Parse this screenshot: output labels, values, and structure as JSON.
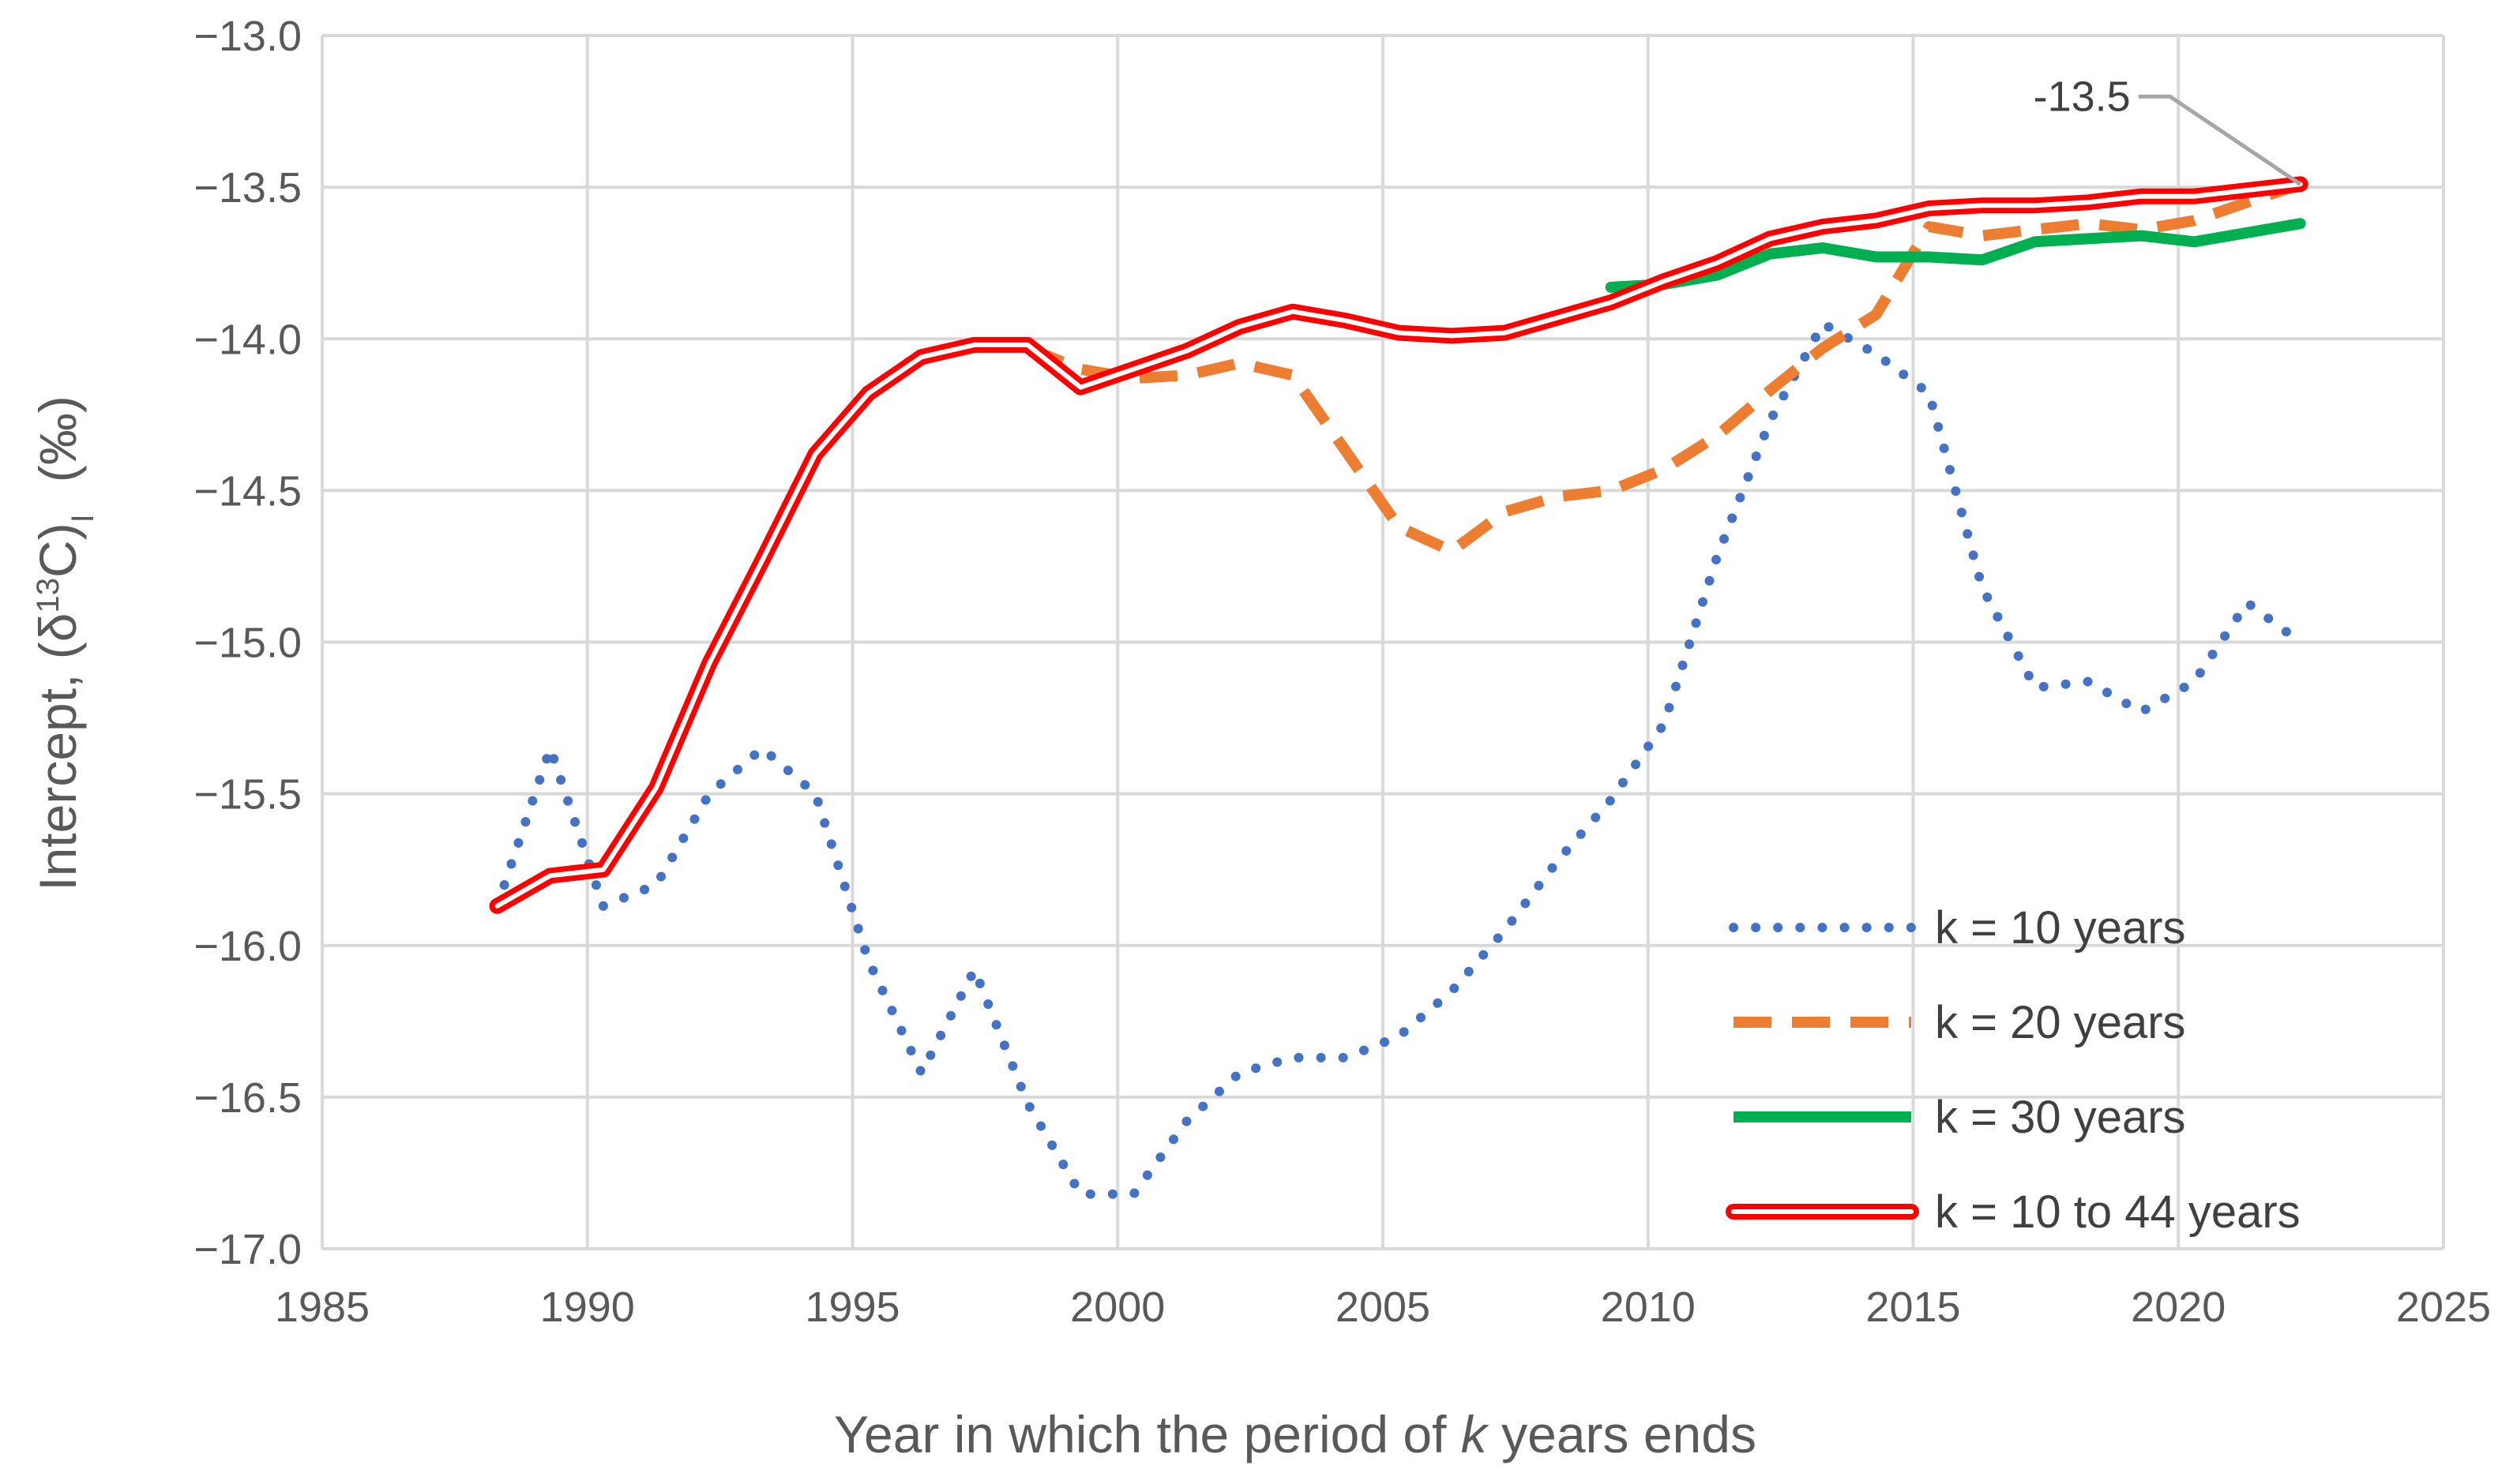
{
  "chart_data": {
    "type": "line",
    "title": "",
    "xlabel_prefix": "Year in which the period of ",
    "xlabel_italic": "k",
    "xlabel_suffix": " years ends",
    "ylabel_main": "Intercept, (δ",
    "ylabel_sup": "13",
    "ylabel_mid": "C)",
    "ylabel_sub": "I",
    "ylabel_unit": "(‰)",
    "xlim": [
      1985,
      2025
    ],
    "ylim": [
      -17.0,
      -13.0
    ],
    "x_ticks": [
      1985,
      1990,
      1995,
      2000,
      2005,
      2010,
      2015,
      2020,
      2025
    ],
    "x_tick_labels": [
      "1985",
      "1990",
      "1995",
      "2000",
      "2005",
      "2010",
      "2015",
      "2020",
      "2025"
    ],
    "y_ticks": [
      -13.0,
      -13.5,
      -14.0,
      -14.5,
      -15.0,
      -15.5,
      -16.0,
      -16.5,
      -17.0
    ],
    "y_tick_labels": [
      "−13.0",
      "−13.5",
      "−14.0",
      "−14.5",
      "−15.0",
      "−15.5",
      "−16.0",
      "−16.5",
      "−17.0"
    ],
    "grid": true,
    "legend_position": "bottom-right",
    "annotation": {
      "text": "-13.5",
      "x": 2022.3,
      "y": -13.49
    },
    "series": [
      {
        "name": "k = 10 years",
        "style": "dotted",
        "color": "#4472C4",
        "x": [
          1988.3,
          1989.3,
          1990.3,
          1991.3,
          1992.3,
          1993.3,
          1994.3,
          1995.3,
          1996.3,
          1997.3,
          1998.3,
          1999.3,
          2000.3,
          2001.3,
          2002.3,
          2003.3,
          2004.3,
          2005.3,
          2006.3,
          2007.3,
          2008.3,
          2009.3,
          2010.3,
          2011.3,
          2012.3,
          2013.3,
          2014.3,
          2015.3,
          2016.3,
          2017.3,
          2018.3,
          2019.3,
          2020.3,
          2021.3,
          2022.3
        ],
        "y": [
          -15.87,
          -15.35,
          -15.87,
          -15.8,
          -15.5,
          -15.35,
          -15.5,
          -16.05,
          -16.42,
          -16.08,
          -16.52,
          -16.82,
          -16.82,
          -16.58,
          -16.42,
          -16.37,
          -16.37,
          -16.3,
          -16.15,
          -15.95,
          -15.72,
          -15.52,
          -15.27,
          -14.72,
          -14.27,
          -13.95,
          -14.05,
          -14.18,
          -14.82,
          -15.15,
          -15.13,
          -15.23,
          -15.13,
          -14.87,
          -15.0
        ]
      },
      {
        "name": "k = 20 years",
        "style": "dashed",
        "color": "#ED7D31",
        "x": [
          1998.3,
          1999.3,
          2000.3,
          2001.3,
          2002.3,
          2003.3,
          2004.3,
          2005.3,
          2006.3,
          2007.3,
          2008.3,
          2009.3,
          2010.3,
          2011.3,
          2012.3,
          2013.3,
          2014.3,
          2015.3,
          2016.3,
          2017.3,
          2018.3,
          2019.3,
          2020.3,
          2021.3,
          2022.3
        ],
        "y": [
          -14.03,
          -14.1,
          -14.13,
          -14.12,
          -14.08,
          -14.12,
          -14.37,
          -14.62,
          -14.7,
          -14.57,
          -14.52,
          -14.5,
          -14.43,
          -14.32,
          -14.17,
          -14.03,
          -13.92,
          -13.63,
          -13.66,
          -13.64,
          -13.62,
          -13.64,
          -13.61,
          -13.55,
          -13.49
        ]
      },
      {
        "name": "k = 30 years",
        "style": "solid",
        "color": "#00B050",
        "x": [
          2009.3,
          2010.3,
          2011.3,
          2012.3,
          2013.3,
          2014.3,
          2015.3,
          2016.3,
          2017.3,
          2018.3,
          2019.3,
          2020.3,
          2021.3,
          2022.3
        ],
        "y": [
          -13.83,
          -13.82,
          -13.79,
          -13.72,
          -13.7,
          -13.73,
          -13.73,
          -13.74,
          -13.68,
          -13.67,
          -13.66,
          -13.68,
          -13.65,
          -13.62
        ]
      },
      {
        "name": "k = 10 to 44 years",
        "style": "double",
        "color": "#FF0000",
        "x": [
          1988.3,
          1989.3,
          1990.3,
          1991.3,
          1992.3,
          1993.3,
          1994.3,
          1995.3,
          1996.3,
          1997.3,
          1998.3,
          1999.3,
          2000.3,
          2001.3,
          2002.3,
          2003.3,
          2004.3,
          2005.3,
          2006.3,
          2007.3,
          2008.3,
          2009.3,
          2010.3,
          2011.3,
          2012.3,
          2013.3,
          2014.3,
          2015.3,
          2016.3,
          2017.3,
          2018.3,
          2019.3,
          2020.3,
          2021.3,
          2022.3
        ],
        "y": [
          -15.87,
          -15.77,
          -15.75,
          -15.48,
          -15.07,
          -14.73,
          -14.38,
          -14.18,
          -14.06,
          -14.02,
          -14.02,
          -14.16,
          -14.1,
          -14.04,
          -13.96,
          -13.91,
          -13.94,
          -13.98,
          -13.99,
          -13.98,
          -13.93,
          -13.88,
          -13.81,
          -13.75,
          -13.67,
          -13.63,
          -13.61,
          -13.57,
          -13.56,
          -13.56,
          -13.55,
          -13.53,
          -13.53,
          -13.51,
          -13.49
        ]
      }
    ]
  }
}
